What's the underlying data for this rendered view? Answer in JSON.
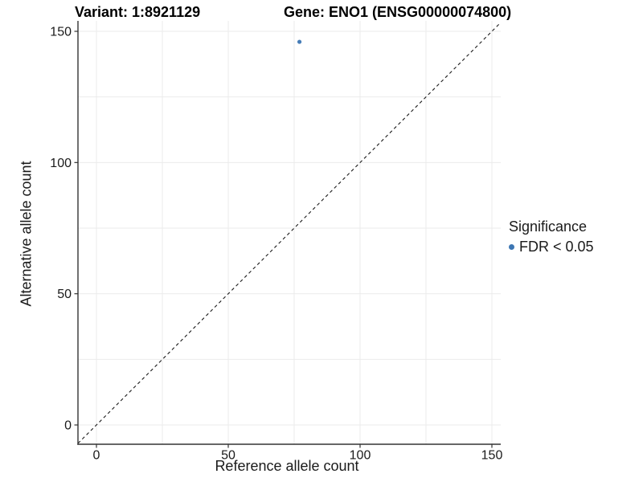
{
  "chart_data": {
    "type": "scatter",
    "title_left": "Variant: 1:8921129",
    "title_right": "Gene: ENO1 (ENSG00000074800)",
    "xlabel": "Reference allele count",
    "ylabel": "Alternative allele count",
    "xlim": [
      0,
      150
    ],
    "ylim": [
      0,
      150
    ],
    "x_ticks": [
      0,
      50,
      100,
      150
    ],
    "y_ticks": [
      0,
      50,
      100,
      150
    ],
    "gridline_step": 25,
    "grid": true,
    "points": [
      {
        "x": 77,
        "y": 146,
        "series": "FDR < 0.05"
      }
    ],
    "reference_line": {
      "type": "identity y=x",
      "style": "dashed",
      "color": "#1a1a1a"
    },
    "legend": {
      "title": "Significance",
      "position": "right",
      "items": [
        {
          "label": "FDR < 0.05",
          "color": "#3d76b3",
          "marker": "circle"
        }
      ]
    },
    "colors": {
      "point": "#3d76b3",
      "grid": "#ebebeb",
      "axis": "#333333",
      "tick_text": "#1a1a1a",
      "background": "#ffffff"
    }
  }
}
